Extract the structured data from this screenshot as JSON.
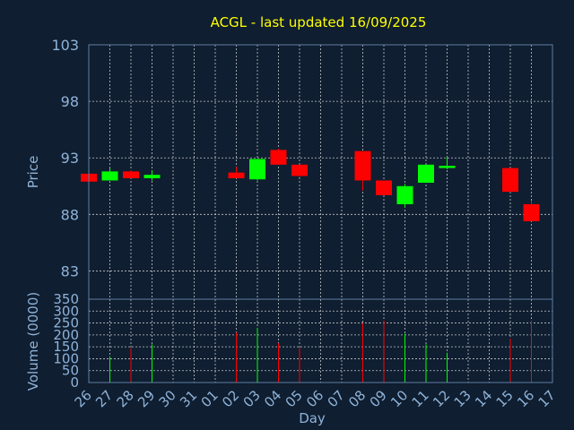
{
  "chart_data": [
    {
      "type": "candlestick",
      "title": "ACGL - last updated 16/09/2025",
      "ylabel": "Price",
      "ylim": [
        80.5,
        103
      ],
      "yticks": [
        "103",
        "98",
        "93",
        "88",
        "83"
      ],
      "ytick_values": [
        103,
        98,
        93,
        88,
        83
      ],
      "grid": true,
      "categories": [
        "26",
        "27",
        "28",
        "29",
        "30",
        "31",
        "01",
        "02",
        "03",
        "04",
        "05",
        "06",
        "07",
        "08",
        "09",
        "10",
        "11",
        "12",
        "13",
        "14",
        "15",
        "16",
        "17"
      ],
      "candles": [
        {
          "x": "26",
          "open": 91.6,
          "close": 90.9,
          "high": 91.6,
          "low": 90.9
        },
        {
          "x": "27",
          "open": 91.0,
          "close": 91.8,
          "high": 92.1,
          "low": 91.0
        },
        {
          "x": "28",
          "open": 91.8,
          "close": 91.2,
          "high": 91.9,
          "low": 91.2
        },
        {
          "x": "29",
          "open": 91.2,
          "close": 91.5,
          "high": 91.9,
          "low": 91.0
        },
        {
          "x": "02",
          "open": 91.7,
          "close": 91.2,
          "high": 92.2,
          "low": 91.2
        },
        {
          "x": "03",
          "open": 91.1,
          "close": 92.9,
          "high": 92.9,
          "low": 91.0
        },
        {
          "x": "04",
          "open": 93.7,
          "close": 92.4,
          "high": 93.8,
          "low": 92.4
        },
        {
          "x": "05",
          "open": 92.4,
          "close": 91.4,
          "high": 92.4,
          "low": 91.3
        },
        {
          "x": "08",
          "open": 93.6,
          "close": 91.0,
          "high": 93.6,
          "low": 90.1
        },
        {
          "x": "09",
          "open": 91.0,
          "close": 89.7,
          "high": 91.0,
          "low": 89.7
        },
        {
          "x": "10",
          "open": 88.9,
          "close": 90.5,
          "high": 90.7,
          "low": 88.6
        },
        {
          "x": "11",
          "open": 90.8,
          "close": 92.4,
          "high": 92.4,
          "low": 90.8
        },
        {
          "x": "12",
          "open": 92.1,
          "close": 92.3,
          "high": 93.1,
          "low": 92.0
        },
        {
          "x": "15",
          "open": 92.1,
          "close": 90.0,
          "high": 92.1,
          "low": 90.0
        },
        {
          "x": "16",
          "open": 88.9,
          "close": 87.4,
          "high": 89.2,
          "low": 87.4
        }
      ],
      "colors": {
        "up": "#00ff00",
        "down": "#ff0000",
        "background": "#0f1e30",
        "title": "#ffff00",
        "text": "#8fb3d9"
      }
    },
    {
      "type": "bar",
      "ylabel": "Volume (0000)",
      "xlabel": "Day",
      "ylim": [
        0,
        350
      ],
      "yticks": [
        "350",
        "300",
        "250",
        "200",
        "150",
        "100",
        "50",
        "0"
      ],
      "ytick_values": [
        350,
        300,
        250,
        200,
        150,
        100,
        50,
        0
      ],
      "categories": [
        "26",
        "27",
        "28",
        "29",
        "30",
        "31",
        "01",
        "02",
        "03",
        "04",
        "05",
        "06",
        "07",
        "08",
        "09",
        "10",
        "11",
        "12",
        "13",
        "14",
        "15",
        "16",
        "17"
      ],
      "bars": [
        {
          "x": "27",
          "value": 110,
          "direction": "up"
        },
        {
          "x": "28",
          "value": 145,
          "direction": "down"
        },
        {
          "x": "29",
          "value": 160,
          "direction": "up"
        },
        {
          "x": "02",
          "value": 210,
          "direction": "down"
        },
        {
          "x": "03",
          "value": 230,
          "direction": "up"
        },
        {
          "x": "04",
          "value": 165,
          "direction": "down"
        },
        {
          "x": "05",
          "value": 145,
          "direction": "down"
        },
        {
          "x": "08",
          "value": 250,
          "direction": "down"
        },
        {
          "x": "09",
          "value": 260,
          "direction": "down"
        },
        {
          "x": "10",
          "value": 205,
          "direction": "up"
        },
        {
          "x": "11",
          "value": 160,
          "direction": "up"
        },
        {
          "x": "12",
          "value": 125,
          "direction": "up"
        },
        {
          "x": "15",
          "value": 185,
          "direction": "down"
        },
        {
          "x": "16",
          "value": 260,
          "direction": "down"
        }
      ]
    }
  ]
}
